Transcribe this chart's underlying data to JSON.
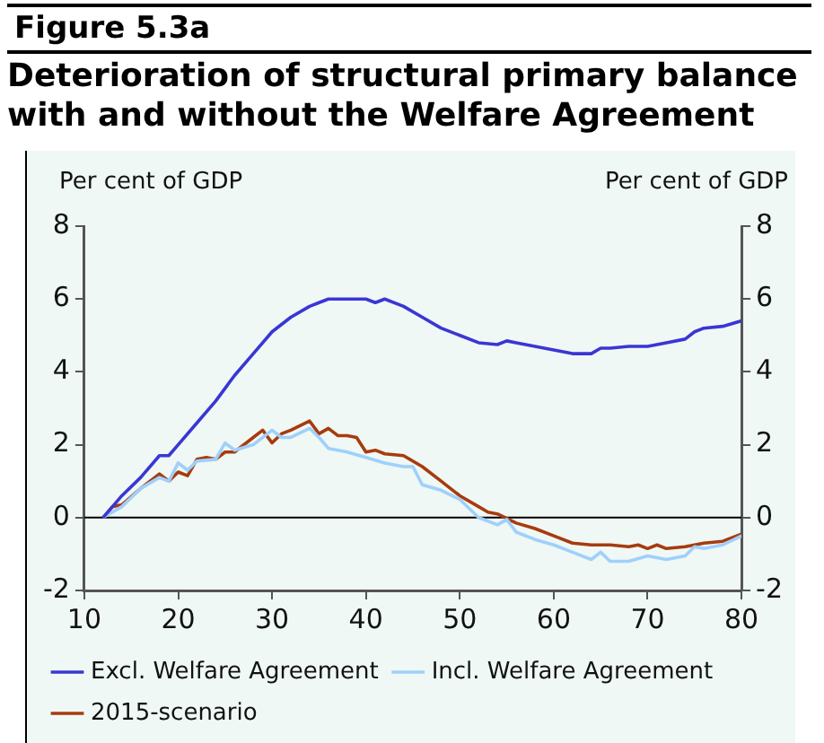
{
  "chart_data": {
    "type": "line",
    "title": "Deterioration of structural primary balance with and without the Welfare Agreement",
    "annotations": [
      "Figure 5.3a"
    ],
    "ylabel": "Per cent of GDP",
    "y2label": "Per cent of GDP",
    "xlim": [
      10,
      80
    ],
    "xticks": [
      10,
      20,
      30,
      40,
      50,
      60,
      70,
      80
    ],
    "ylim": [
      -2,
      8
    ],
    "yticks": [
      -2,
      0,
      2,
      4,
      6,
      8
    ],
    "y2lim": [
      -2,
      8
    ],
    "y2ticks": [
      -2,
      0,
      2,
      4,
      6,
      8
    ],
    "grid": false,
    "legend": "bottom",
    "marker": "none",
    "line_style": "solid",
    "ref_lines": [
      {
        "axis": "y",
        "value": 0,
        "color": "#000000"
      }
    ],
    "series": [
      {
        "name": "Excl. Welfare Agreement",
        "color": "#3a36d4",
        "x": [
          12,
          14,
          16,
          18,
          19,
          20,
          22,
          24,
          26,
          28,
          30,
          32,
          34,
          35,
          36,
          38,
          40,
          41,
          42,
          44,
          46,
          48,
          50,
          52,
          54,
          55,
          56,
          58,
          60,
          62,
          64,
          65,
          66,
          68,
          70,
          72,
          74,
          75,
          76,
          78,
          80
        ],
        "values": [
          0,
          0.6,
          1.1,
          1.7,
          1.7,
          2.0,
          2.6,
          3.2,
          3.9,
          4.5,
          5.1,
          5.5,
          5.8,
          5.9,
          6.0,
          6.0,
          6.0,
          5.9,
          6.0,
          5.8,
          5.5,
          5.2,
          5.0,
          4.8,
          4.75,
          4.85,
          4.8,
          4.7,
          4.6,
          4.5,
          4.5,
          4.65,
          4.65,
          4.7,
          4.7,
          4.8,
          4.9,
          5.1,
          5.2,
          5.25,
          5.4
        ]
      },
      {
        "name": "Incl. Welfare Agreement",
        "color": "#9fd0fb",
        "x": [
          12,
          14,
          16,
          18,
          19,
          20,
          21,
          22,
          24,
          25,
          26,
          28,
          30,
          31,
          32,
          34,
          35,
          36,
          38,
          40,
          42,
          44,
          45,
          46,
          48,
          50,
          52,
          54,
          55,
          56,
          58,
          60,
          62,
          64,
          65,
          66,
          68,
          70,
          72,
          74,
          75,
          76,
          78,
          80
        ],
        "values": [
          0,
          0.3,
          0.8,
          1.1,
          1.0,
          1.5,
          1.3,
          1.55,
          1.6,
          2.05,
          1.85,
          2.0,
          2.4,
          2.2,
          2.2,
          2.45,
          2.2,
          1.9,
          1.8,
          1.65,
          1.5,
          1.4,
          1.4,
          0.9,
          0.75,
          0.5,
          0.0,
          -0.2,
          -0.05,
          -0.4,
          -0.6,
          -0.75,
          -0.95,
          -1.15,
          -0.95,
          -1.2,
          -1.2,
          -1.05,
          -1.15,
          -1.05,
          -0.8,
          -0.85,
          -0.75,
          -0.5
        ]
      },
      {
        "name": "2015-scenario",
        "color": "#a73b0f",
        "x": [
          12,
          13,
          14,
          16,
          18,
          19,
          20,
          21,
          22,
          23,
          24,
          25,
          26,
          28,
          29,
          30,
          31,
          32,
          34,
          35,
          36,
          37,
          38,
          39,
          40,
          41,
          42,
          44,
          46,
          48,
          50,
          52,
          53,
          54,
          56,
          58,
          60,
          62,
          64,
          66,
          68,
          69,
          70,
          71,
          72,
          74,
          76,
          78,
          80
        ],
        "values": [
          0,
          0.3,
          0.35,
          0.8,
          1.2,
          1.0,
          1.25,
          1.15,
          1.6,
          1.65,
          1.6,
          1.8,
          1.8,
          2.2,
          2.4,
          2.05,
          2.3,
          2.4,
          2.65,
          2.3,
          2.45,
          2.25,
          2.25,
          2.2,
          1.8,
          1.85,
          1.75,
          1.7,
          1.4,
          1.0,
          0.6,
          0.3,
          0.15,
          0.1,
          -0.15,
          -0.3,
          -0.5,
          -0.7,
          -0.75,
          -0.75,
          -0.8,
          -0.75,
          -0.85,
          -0.75,
          -0.85,
          -0.8,
          -0.7,
          -0.65,
          -0.45
        ]
      }
    ]
  }
}
